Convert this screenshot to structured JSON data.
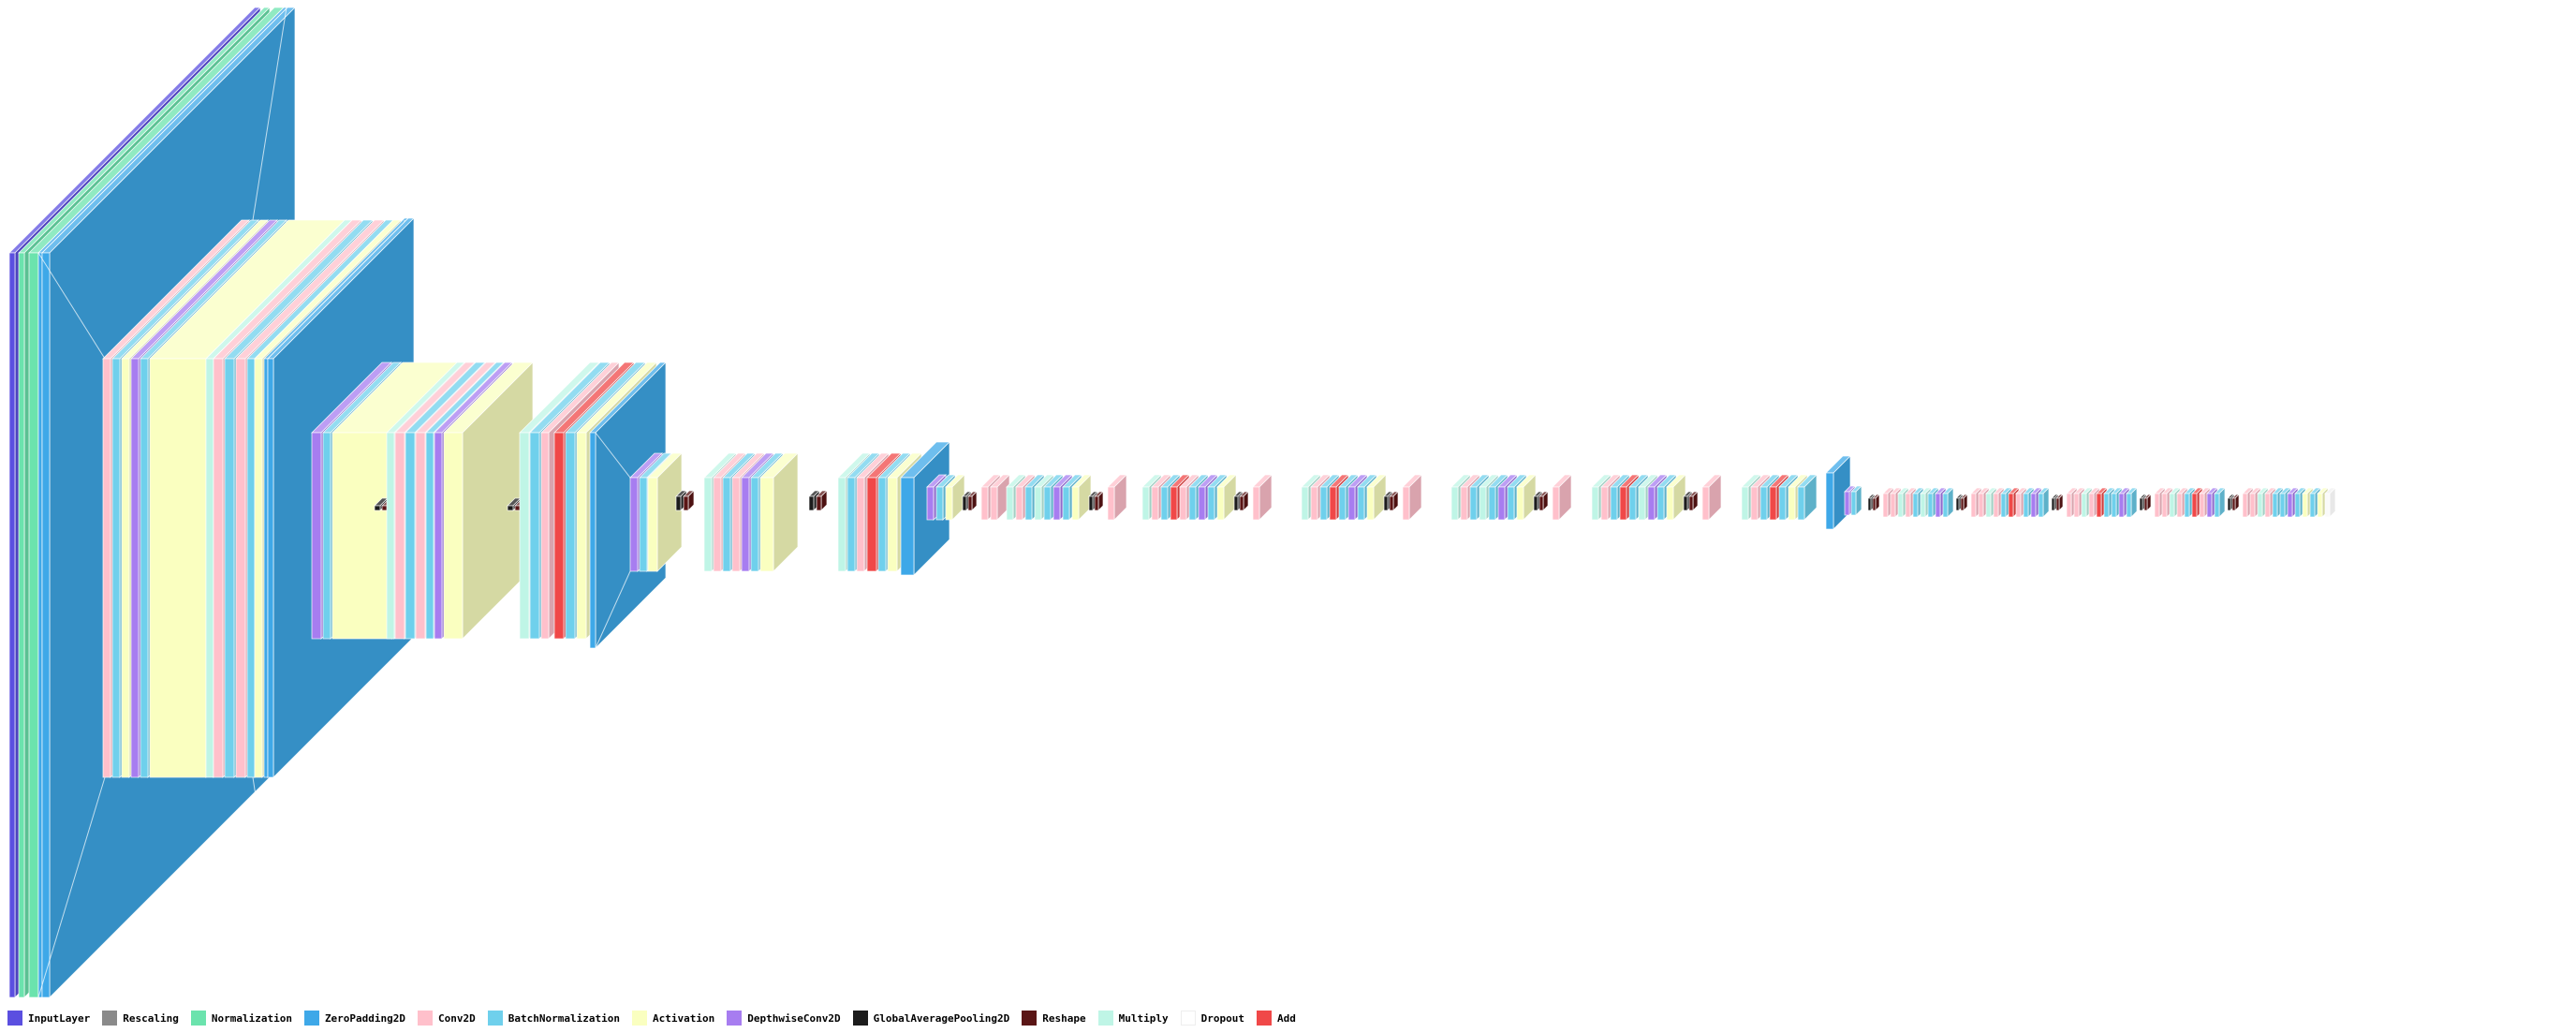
{
  "legend": [
    {
      "id": "input",
      "label": "InputLayer",
      "color": "#5b4fe0"
    },
    {
      "id": "rescaling",
      "label": "Rescaling",
      "color": "#8a8a8a"
    },
    {
      "id": "normalization",
      "label": "Normalization",
      "color": "#6be3ad"
    },
    {
      "id": "zeropad",
      "label": "ZeroPadding2D",
      "color": "#3ea8e8"
    },
    {
      "id": "conv",
      "label": "Conv2D",
      "color": "#ffc0cb"
    },
    {
      "id": "bn",
      "label": "BatchNormalization",
      "color": "#6fd0ec"
    },
    {
      "id": "act",
      "label": "Activation",
      "color": "#faffc0"
    },
    {
      "id": "dw",
      "label": "DepthwiseConv2D",
      "color": "#a77df0"
    },
    {
      "id": "gap",
      "label": "GlobalAveragePooling2D",
      "color": "#1c1c1c"
    },
    {
      "id": "reshape",
      "label": "Reshape",
      "color": "#5a1515"
    },
    {
      "id": "multiply",
      "label": "Multiply",
      "color": "#bff5e6"
    },
    {
      "id": "dropout",
      "label": "Dropout",
      "color": "#ffffff"
    },
    {
      "id": "add",
      "label": "Add",
      "color": "#f04848"
    }
  ]
}
